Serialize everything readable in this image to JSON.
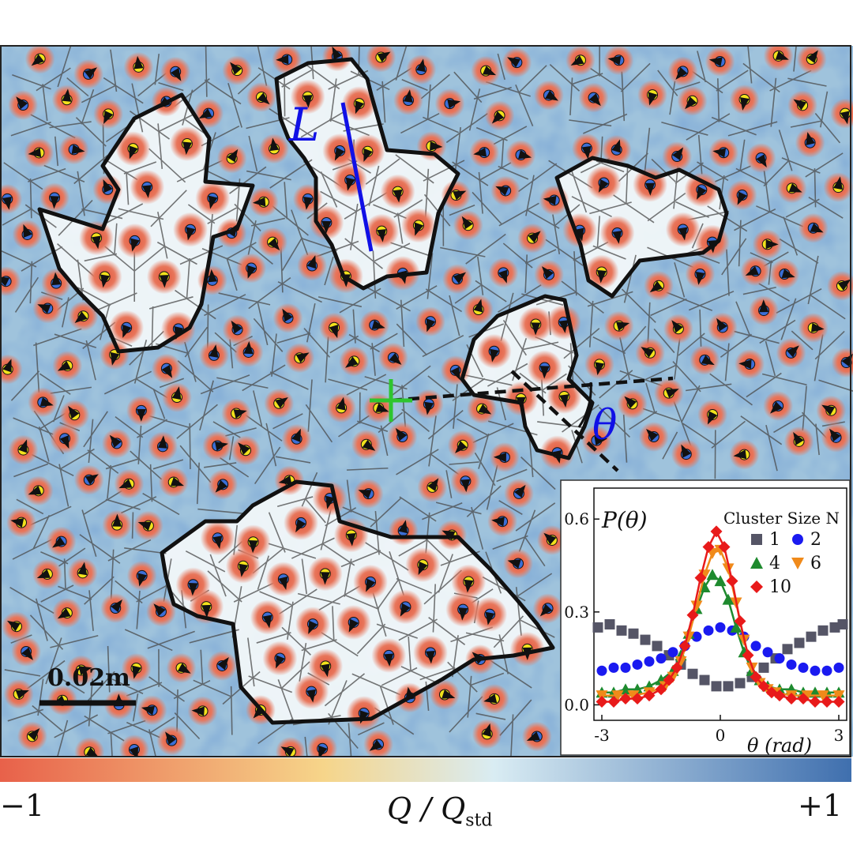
{
  "main_figure": {
    "length_symbol": "L",
    "angle_symbol": "θ",
    "scale_bar_label": "0.02m"
  },
  "colorbar": {
    "min_label": "−1",
    "max_label": "+1",
    "quantity_main": "Q / Q",
    "quantity_sub": "std",
    "colors": [
      "#e8614a",
      "#f6d58a",
      "#d9ecf3",
      "#3f6fae"
    ]
  },
  "inset": {
    "y_label": "P(θ)",
    "x_label": "θ (rad)",
    "legend_title": "Cluster Size N",
    "y_ticks": [
      "0.0",
      "0.3",
      "0.6"
    ],
    "x_ticks": [
      "-3",
      "0",
      "3"
    ]
  },
  "chart_data": {
    "type": "scatter",
    "title": "",
    "xlabel": "θ (rad)",
    "ylabel": "P(θ)",
    "xlim": [
      -3.2,
      3.2
    ],
    "ylim": [
      -0.05,
      0.7
    ],
    "legend_placement": "top-right",
    "series": [
      {
        "name": "1",
        "color": "#555566",
        "marker": "square",
        "x": [
          -3.1,
          -2.8,
          -2.5,
          -2.2,
          -1.9,
          -1.6,
          -1.3,
          -1.0,
          -0.7,
          -0.4,
          -0.1,
          0.2,
          0.5,
          0.8,
          1.1,
          1.4,
          1.7,
          2.0,
          2.3,
          2.6,
          2.9,
          3.1
        ],
        "y": [
          0.25,
          0.26,
          0.24,
          0.23,
          0.21,
          0.19,
          0.16,
          0.13,
          0.1,
          0.08,
          0.06,
          0.06,
          0.07,
          0.09,
          0.12,
          0.15,
          0.18,
          0.2,
          0.22,
          0.24,
          0.25,
          0.26
        ]
      },
      {
        "name": "2",
        "color": "#1a1af0",
        "marker": "circle",
        "x": [
          -3.0,
          -2.7,
          -2.4,
          -2.1,
          -1.8,
          -1.5,
          -1.2,
          -0.9,
          -0.6,
          -0.3,
          0.0,
          0.3,
          0.6,
          0.9,
          1.2,
          1.5,
          1.8,
          2.1,
          2.4,
          2.7,
          3.0
        ],
        "y": [
          0.11,
          0.12,
          0.12,
          0.13,
          0.14,
          0.15,
          0.17,
          0.19,
          0.22,
          0.24,
          0.25,
          0.24,
          0.22,
          0.19,
          0.17,
          0.15,
          0.13,
          0.12,
          0.11,
          0.11,
          0.12
        ]
      },
      {
        "name": "4",
        "color": "#1e8a2e",
        "marker": "triangle-up",
        "x": [
          -3.0,
          -2.7,
          -2.4,
          -2.1,
          -1.8,
          -1.5,
          -1.2,
          -1.0,
          -0.8,
          -0.6,
          -0.4,
          -0.2,
          0.0,
          0.2,
          0.4,
          0.6,
          0.8,
          1.0,
          1.2,
          1.5,
          1.8,
          2.1,
          2.4,
          2.7,
          3.0
        ],
        "y": [
          0.04,
          0.04,
          0.05,
          0.05,
          0.06,
          0.08,
          0.11,
          0.16,
          0.23,
          0.31,
          0.38,
          0.42,
          0.4,
          0.34,
          0.25,
          0.17,
          0.11,
          0.08,
          0.06,
          0.05,
          0.05,
          0.04,
          0.04,
          0.04,
          0.04
        ]
      },
      {
        "name": "6",
        "color": "#f08a1a",
        "marker": "triangle-down",
        "x": [
          -3.0,
          -2.6,
          -2.2,
          -1.8,
          -1.4,
          -1.2,
          -1.0,
          -0.8,
          -0.6,
          -0.4,
          -0.2,
          0.0,
          0.2,
          0.4,
          0.6,
          0.8,
          1.0,
          1.2,
          1.4,
          1.8,
          2.2,
          2.6,
          3.0
        ],
        "y": [
          0.03,
          0.03,
          0.03,
          0.04,
          0.06,
          0.09,
          0.14,
          0.22,
          0.32,
          0.42,
          0.49,
          0.5,
          0.44,
          0.33,
          0.21,
          0.12,
          0.07,
          0.05,
          0.04,
          0.03,
          0.03,
          0.03,
          0.03
        ]
      },
      {
        "name": "10",
        "color": "#e81a1a",
        "marker": "diamond",
        "x": [
          -3.0,
          -2.7,
          -2.4,
          -2.1,
          -1.8,
          -1.5,
          -1.3,
          -1.1,
          -0.9,
          -0.7,
          -0.5,
          -0.3,
          -0.1,
          0.1,
          0.3,
          0.5,
          0.7,
          0.9,
          1.1,
          1.3,
          1.5,
          1.8,
          2.1,
          2.4,
          2.7,
          3.0
        ],
        "y": [
          0.01,
          0.01,
          0.02,
          0.02,
          0.03,
          0.05,
          0.08,
          0.12,
          0.19,
          0.29,
          0.41,
          0.51,
          0.56,
          0.51,
          0.4,
          0.27,
          0.16,
          0.09,
          0.06,
          0.04,
          0.03,
          0.02,
          0.02,
          0.01,
          0.01,
          0.01
        ]
      }
    ]
  }
}
